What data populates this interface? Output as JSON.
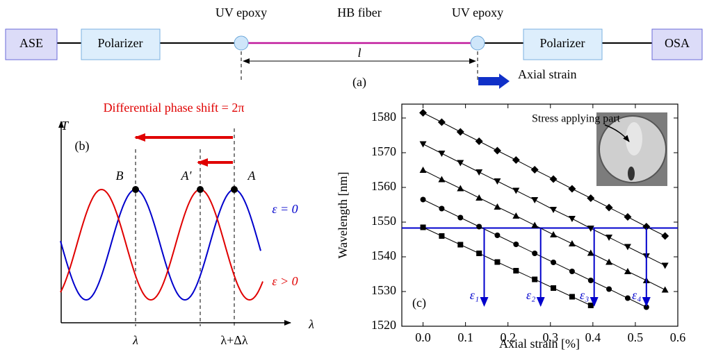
{
  "diagram": {
    "blocks": [
      "ASE",
      "Polarizer",
      "Polarizer",
      "OSA"
    ],
    "epoxy_labels": [
      "UV epoxy",
      "UV epoxy"
    ],
    "fiber_label": "HB fiber",
    "length_label": "l",
    "panel_label": "(a)",
    "strain_label": "Axial strain"
  },
  "schematic": {
    "y_label": "T",
    "x_label": "λ",
    "panel_label": "(b)",
    "shift_label": "Differential phase shift = 2π",
    "peak_labels": [
      "B",
      "A′",
      "A"
    ],
    "curve_labels": [
      "ε = 0",
      "ε > 0"
    ],
    "wavelength_labels": [
      "λ",
      "λ+Δλ"
    ]
  },
  "chart_data": {
    "type": "line",
    "panel_label": "(c)",
    "x_label": "Axial strain [%]",
    "y_label": "Wavelength [nm]",
    "inset_label": "Stress applying part",
    "x": [
      0,
      0.044,
      0.088,
      0.132,
      0.175,
      0.219,
      0.263,
      0.307,
      0.351,
      0.395,
      0.438,
      0.482,
      0.526,
      0.57
    ],
    "series": [
      {
        "color": "#000000",
        "marker": "square",
        "values": [
          1548.5,
          1546.0,
          1543.5,
          1541.0,
          1538.5,
          1536.0,
          1533.5,
          1531.0,
          1528.5,
          1526.0,
          null,
          null,
          null,
          null
        ]
      },
      {
        "color": "#000000",
        "marker": "circle",
        "values": [
          1556.5,
          1553.9,
          1551.3,
          1548.7,
          1546.2,
          1543.6,
          1541.0,
          1538.4,
          1535.8,
          1533.2,
          1530.7,
          1528.1,
          1525.5,
          null
        ]
      },
      {
        "color": "#000000",
        "marker": "triangle-up",
        "values": [
          1565.0,
          1562.3,
          1559.7,
          1557.0,
          1554.4,
          1551.8,
          1549.1,
          1546.4,
          1543.8,
          1541.1,
          1538.5,
          1535.8,
          1533.2,
          1530.5
        ]
      },
      {
        "color": "#000000",
        "marker": "triangle-down",
        "values": [
          1572.5,
          1569.8,
          1567.1,
          1564.4,
          1561.8,
          1559.1,
          1556.4,
          1553.6,
          1551.0,
          1548.2,
          1545.6,
          1542.9,
          1540.2,
          1537.5
        ]
      },
      {
        "color": "#000000",
        "marker": "diamond",
        "values": [
          1581.5,
          1578.8,
          1576.0,
          1573.3,
          1570.6,
          1567.9,
          1565.1,
          1562.4,
          1559.6,
          1556.9,
          1554.2,
          1551.5,
          1548.7,
          1546.0
        ]
      }
    ],
    "reference_line": {
      "value": 1548.3,
      "color": "#0000cc"
    },
    "strain_markers": {
      "x": [
        0.144,
        0.277,
        0.403,
        0.526
      ],
      "labels": [
        "ε₁",
        "ε₂",
        "ε₃",
        "ε₄"
      ],
      "color": "#0000cc"
    },
    "xlim": [
      -0.05,
      0.6
    ],
    "ylim": [
      1520,
      1584
    ],
    "xticks": [
      {
        "value": 0,
        "label": "0.0"
      },
      0.1,
      0.2,
      0.3,
      0.4,
      0.5,
      0.6
    ],
    "yticks": [
      1520,
      1530,
      1540,
      1550,
      1560,
      1570,
      1580
    ],
    "grid": false
  }
}
